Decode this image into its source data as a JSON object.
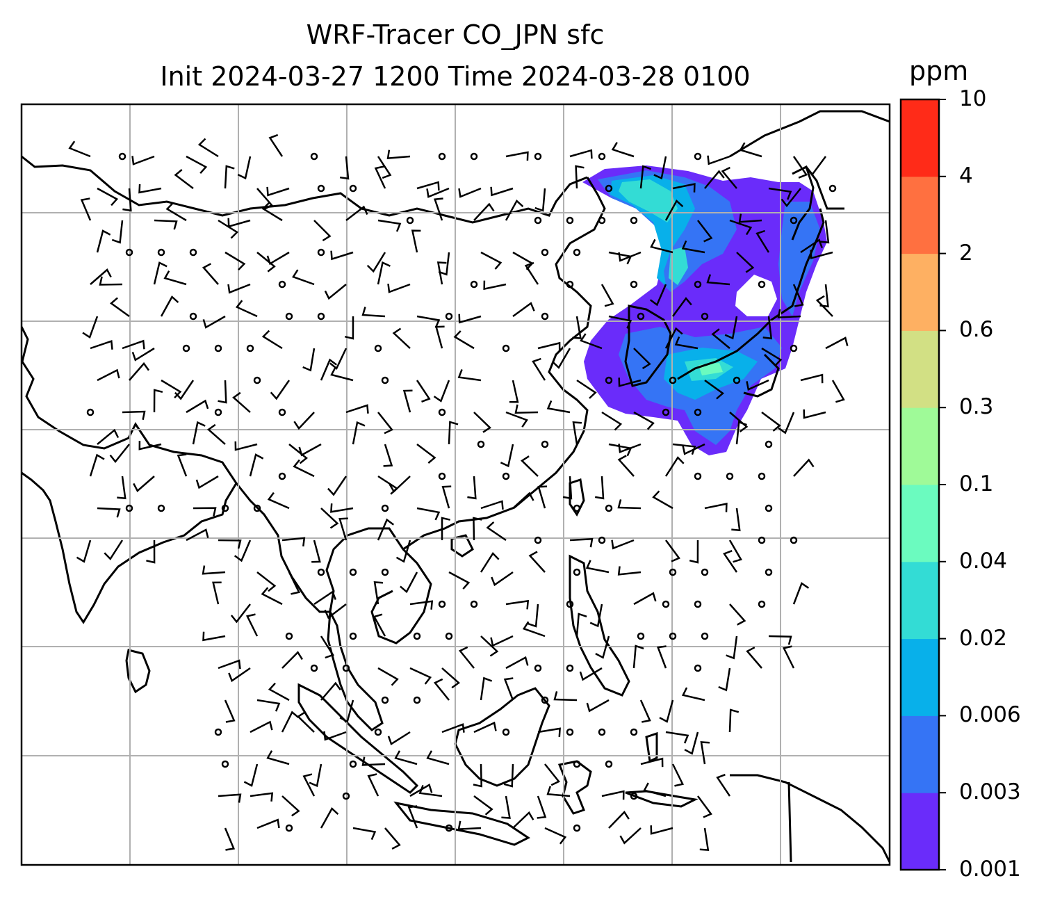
{
  "title": "WRF-Tracer CO_JPN sfc",
  "subtitle": "Init 2024-03-27 1200 Time 2024-03-28 0100",
  "colorbar": {
    "unit": "ppm",
    "levels": [
      "0.001",
      "0.003",
      "0.006",
      "0.02",
      "0.04",
      "0.1",
      "0.3",
      "0.6",
      "2",
      "4",
      "10"
    ],
    "colors": [
      "#6a2cfa",
      "#3574f5",
      "#08b0ea",
      "#33dcd5",
      "#6bfbbf",
      "#9ffa98",
      "#d2e084",
      "#feb062",
      "#ff7040",
      "#ff2b18"
    ]
  },
  "map": {
    "region": "Asia (India – Japan – Indonesia)",
    "features": [
      "coastlines",
      "gridlines",
      "wind-barbs",
      "tracer-plume"
    ]
  }
}
